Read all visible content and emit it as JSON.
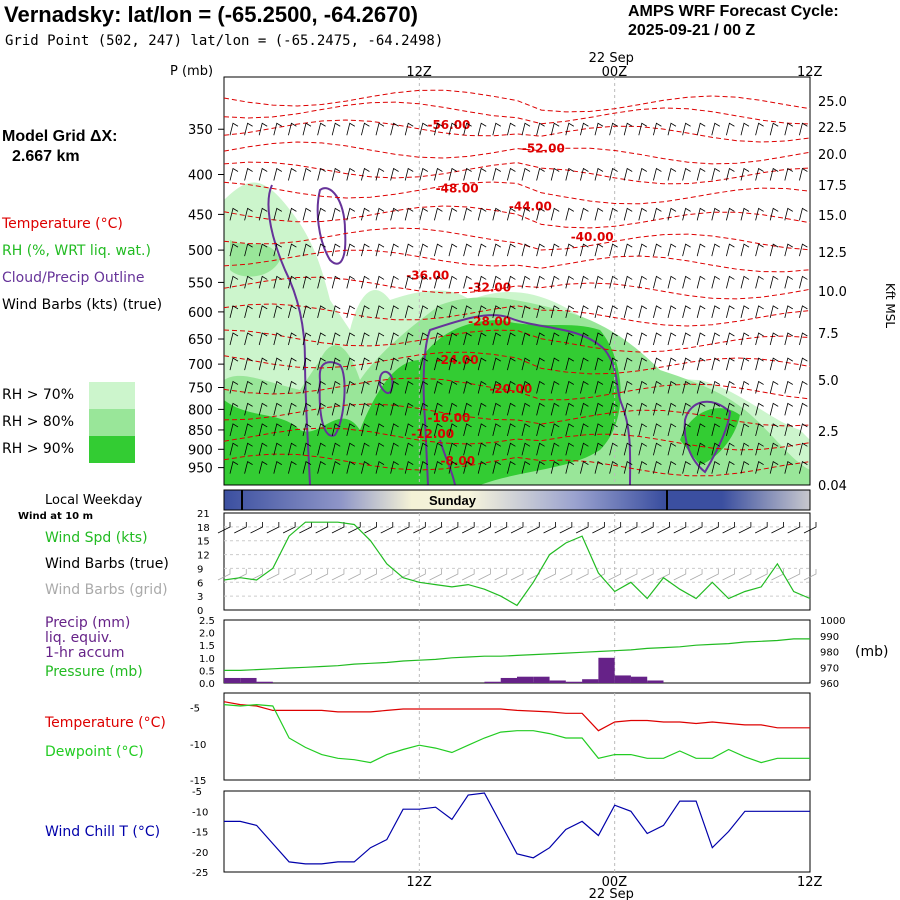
{
  "header": {
    "title": "Vernadsky:  lat/lon = (-65.2500, -64.2670)",
    "subtitle": "Grid Point (502, 247) lat/lon = (-65.2475, -64.2498)",
    "cycle_line1": "AMPS WRF Forecast Cycle:",
    "cycle_line2": "2025-09-21 / 00  Z",
    "grid_label": "Model Grid ΔX:",
    "grid_value": "2.667 km"
  },
  "legend": {
    "temperature": "Temperature (°C)",
    "rh": "RH (%, WRT liq. wat.)",
    "cloud": "Cloud/Precip Outline",
    "wind": "Wind Barbs (kts) (true)",
    "rh70": "RH > 70%",
    "rh80": "RH > 80%",
    "rh90": "RH > 90%",
    "rh70_color": "#ccf5cc",
    "rh80_color": "#99e699",
    "rh90_color": "#33cc33"
  },
  "time_axis": {
    "top_ticks": [
      "12Z",
      "00Z",
      "12Z"
    ],
    "date_label": "22 Sep",
    "day_label": "Sunday",
    "local_weekday": "Local Weekday",
    "wind_at_10m": "Wind at 10 m"
  },
  "colors": {
    "temperature": "#dd0000",
    "rh": "#22bb22",
    "cloud": "#663399",
    "precip": "#662288",
    "pressure": "#22bb22",
    "dewpoint": "#22cc22",
    "windchill": "#0000aa",
    "grid_barbs": "#aaaaaa"
  },
  "chart_data": [
    {
      "type": "heatmap",
      "name": "vertical cross-section",
      "ylabel": "P (mb)",
      "y2label": "Kft MSL",
      "yticks": [
        350,
        400,
        450,
        500,
        550,
        600,
        650,
        700,
        750,
        800,
        850,
        900,
        950
      ],
      "y2ticks": [
        "25.0",
        "22.5",
        "20.0",
        "17.5",
        "15.0",
        "12.5",
        "10.0",
        "7.5",
        "5.0",
        "2.5",
        "0.04"
      ],
      "ylim": [
        300,
        1000
      ],
      "x_hours": [
        0,
        36
      ],
      "temperature_labels": [
        {
          "label": "-56.00",
          "hour": 12.5,
          "p": 350
        },
        {
          "label": "-52.00",
          "hour": 18.3,
          "p": 375
        },
        {
          "label": "-48.00",
          "hour": 13,
          "p": 422
        },
        {
          "label": "-44.00",
          "hour": 17.5,
          "p": 445
        },
        {
          "label": "-40.00",
          "hour": 21.3,
          "p": 487
        },
        {
          "label": "-36.00",
          "hour": 11.2,
          "p": 545
        },
        {
          "label": "-32.00",
          "hour": 15,
          "p": 565
        },
        {
          "label": "-28.00",
          "hour": 15,
          "p": 625
        },
        {
          "label": "-24.00",
          "hour": 13,
          "p": 700
        },
        {
          "label": "-20.00",
          "hour": 16.3,
          "p": 762
        },
        {
          "label": "-16.00",
          "hour": 12.5,
          "p": 830
        },
        {
          "label": "-12.00",
          "hour": 11.5,
          "p": 870
        },
        {
          "label": "-8.00",
          "hour": 13.3,
          "p": 943
        }
      ]
    },
    {
      "type": "line",
      "name": "wind",
      "ylabel": "Wind Spd (kts)",
      "barbs_true_label": "Wind Barbs (true)",
      "barbs_grid_label": "Wind Barbs (grid)",
      "yticks": [
        0,
        3,
        6,
        9,
        12,
        15,
        18,
        21
      ],
      "ylim": [
        0,
        21
      ],
      "x": [
        0,
        1,
        2,
        3,
        4,
        5,
        6,
        7,
        8,
        9,
        10,
        11,
        12,
        13,
        14,
        15,
        16,
        17,
        18,
        19,
        20,
        21,
        22,
        23,
        24,
        25,
        26,
        27,
        28,
        29,
        30,
        31,
        32,
        33,
        34,
        35,
        36
      ],
      "values": [
        6.5,
        7,
        6.5,
        9,
        16,
        19,
        19,
        19,
        18.5,
        15,
        10,
        7,
        6,
        5.5,
        5,
        5.5,
        4.5,
        3,
        1,
        6,
        12,
        14.5,
        16,
        8,
        4,
        6,
        2.5,
        7,
        4.5,
        2.5,
        6,
        2.5,
        4,
        5,
        10,
        4,
        2.5
      ]
    },
    {
      "type": "bar",
      "name": "precip and pressure",
      "ylabel": "Precip (mm)",
      "ylabel_line2": "liq. equiv.",
      "ylabel_line3": "1-hr accum",
      "y2label": "Pressure (mb)",
      "y2unit": "(mb)",
      "yticks": [
        "0.0",
        "0.5",
        "1.0",
        "1.5",
        "2.0",
        "2.5"
      ],
      "y2ticks": [
        "960",
        "970",
        "980",
        "990",
        "1000"
      ],
      "ylim": [
        0,
        2.5
      ],
      "y2lim": [
        960,
        1000
      ],
      "x": [
        0,
        1,
        2,
        3,
        4,
        5,
        6,
        7,
        8,
        9,
        10,
        11,
        12,
        13,
        14,
        15,
        16,
        17,
        18,
        19,
        20,
        21,
        22,
        23,
        24,
        25,
        26,
        27,
        28,
        29,
        30,
        31,
        32,
        33,
        34,
        35,
        36
      ],
      "precip": [
        0.2,
        0.2,
        0.05,
        0,
        0,
        0,
        0,
        0,
        0,
        0,
        0,
        0,
        0,
        0,
        0,
        0,
        0.05,
        0.2,
        0.25,
        0.25,
        0.1,
        0.05,
        0.15,
        1.0,
        0.3,
        0.25,
        0.1,
        0,
        0,
        0,
        0,
        0,
        0,
        0,
        0,
        0,
        0
      ],
      "pressure": [
        968,
        968,
        968.5,
        969,
        969.5,
        970,
        970.5,
        971,
        972,
        972.5,
        973,
        974,
        974.5,
        975,
        976,
        976.5,
        977,
        977,
        977.5,
        978,
        978.5,
        979,
        979.5,
        980,
        980.5,
        981,
        982,
        982.5,
        983,
        984,
        984.5,
        985,
        986,
        986.5,
        987,
        988,
        988
      ]
    },
    {
      "type": "line",
      "name": "temperature and dewpoint",
      "series": [
        {
          "name": "Temperature (°C)",
          "values": [
            -4.2,
            -4.6,
            -4.8,
            -5.4,
            -5.4,
            -5.4,
            -5.4,
            -5.6,
            -5.6,
            -5.6,
            -5.4,
            -5.2,
            -5.2,
            -5.2,
            -5.2,
            -5.2,
            -5.2,
            -5.2,
            -5.4,
            -5.5,
            -5.6,
            -5.8,
            -5.8,
            -8.2,
            -7.0,
            -6.8,
            -6.8,
            -7.0,
            -7.0,
            -7.2,
            -7.0,
            -7.2,
            -7.4,
            -7.4,
            -7.8,
            -7.8,
            -7.8
          ]
        },
        {
          "name": "Dewpoint (°C)",
          "values": [
            -4.6,
            -4.8,
            -4.6,
            -4.8,
            -9.2,
            -10.5,
            -11.5,
            -12.0,
            -12.2,
            -12.6,
            -11.5,
            -10.8,
            -10.2,
            -10.6,
            -11.2,
            -10.2,
            -9.2,
            -8.4,
            -8.2,
            -8.2,
            -8.6,
            -9.2,
            -9.2,
            -12.0,
            -11.5,
            -11.5,
            -12.0,
            -12.0,
            -11.0,
            -12.0,
            -12.0,
            -10.8,
            -11.8,
            -12.6,
            -12.0,
            -12.0,
            -12.0
          ]
        }
      ],
      "yticks": [
        -5,
        -10,
        -15
      ],
      "ylim": [
        -15,
        -3
      ]
    },
    {
      "type": "line",
      "name": "wind chill",
      "ylabel": "Wind Chill T (°C)",
      "yticks": [
        -5,
        -10,
        -15,
        -20,
        -25
      ],
      "ylim": [
        -25,
        -5
      ],
      "values": [
        -12.5,
        -12.5,
        -13.5,
        -18.0,
        -22.5,
        -23.0,
        -23.0,
        -22.5,
        -22.5,
        -19.0,
        -17.0,
        -9.5,
        -9.5,
        -9.0,
        -12.0,
        -6.0,
        -5.5,
        -13.0,
        -20.5,
        -21.5,
        -19.0,
        -14.5,
        -12.5,
        -16.0,
        -8.5,
        -10.0,
        -15.5,
        -13.5,
        -7.5,
        -7.5,
        -19.0,
        -15.0,
        -10.0,
        -10.0,
        -10.0,
        -10.0,
        -10.0
      ],
      "xticks": [
        "12Z",
        "00Z",
        "12Z"
      ],
      "date_label": "22 Sep"
    }
  ]
}
